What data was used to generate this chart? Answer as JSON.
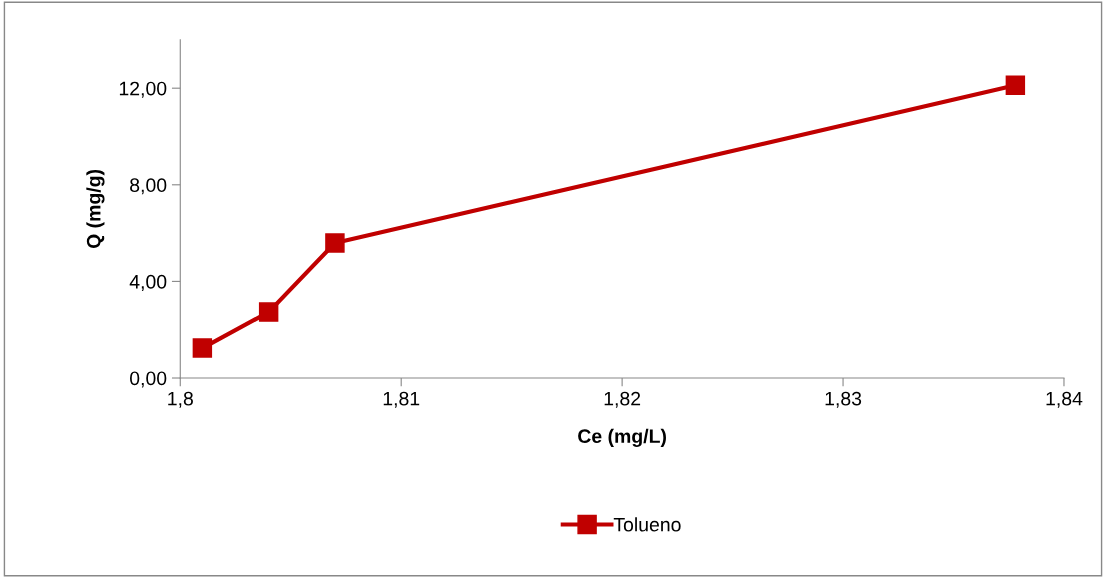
{
  "chart_data": {
    "type": "line",
    "xlabel": "Ce (mg/L)",
    "ylabel": "Q (mg/g)",
    "x": [
      1.801,
      1.804,
      1.807,
      1.8378
    ],
    "series": [
      {
        "name": "Tolueno",
        "color": "#c00000",
        "values": [
          1.24,
          2.73,
          5.59,
          12.12
        ]
      }
    ],
    "xlim": [
      1.8,
      1.84
    ],
    "xticks": [
      {
        "value": 1.8,
        "label": "1,8"
      },
      {
        "value": 1.81,
        "label": "1,81"
      },
      {
        "value": 1.82,
        "label": "1,82"
      },
      {
        "value": 1.83,
        "label": "1,83"
      },
      {
        "value": 1.84,
        "label": "1,84"
      }
    ],
    "ylim": [
      0,
      14
    ],
    "yticks": [
      {
        "value": 0,
        "label": "0,00"
      },
      {
        "value": 4,
        "label": "4,00"
      },
      {
        "value": 8,
        "label": "8,00"
      },
      {
        "value": 12,
        "label": "12,00"
      }
    ],
    "grid": false,
    "legend": "bottom",
    "marker": "square",
    "line_style": "solid"
  }
}
